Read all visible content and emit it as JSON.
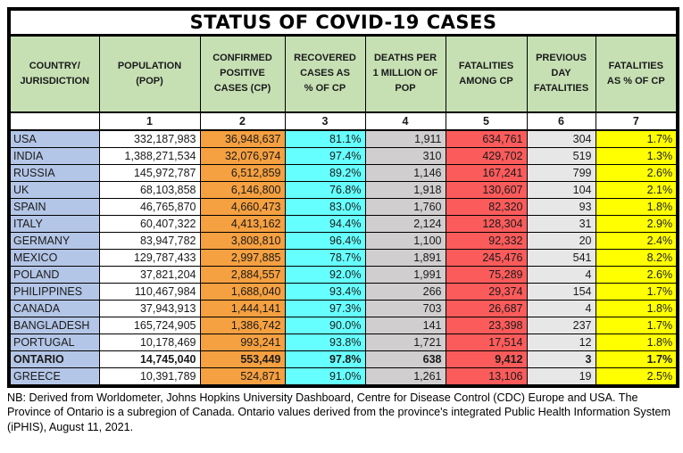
{
  "chart_data": {
    "type": "table",
    "title": "STATUS OF COVID-19 CASES",
    "columns": [
      "COUNTRY/\nJURISDICTION",
      "POPULATION\n(POP)",
      "CONFIRMED\nPOSITIVE\nCASES (CP)",
      "RECOVERED\nCASES AS\n% OF CP",
      "DEATHS PER\n1 MILLION OF\nPOP",
      "FATALITIES\nAMONG CP",
      "PREVIOUS\nDAY\nFATALITIES",
      "FATALITIES\nAS % OF CP"
    ],
    "column_numbers": [
      "",
      "1",
      "2",
      "3",
      "4",
      "5",
      "6",
      "7"
    ],
    "rows": [
      [
        "USA",
        "332,187,983",
        "36,948,637",
        "81.1%",
        "1,911",
        "634,761",
        "304",
        "1.7%"
      ],
      [
        "INDIA",
        "1,388,271,534",
        "32,076,974",
        "97.4%",
        "310",
        "429,702",
        "519",
        "1.3%"
      ],
      [
        "RUSSIA",
        "145,972,787",
        "6,512,859",
        "89.2%",
        "1,146",
        "167,241",
        "799",
        "2.6%"
      ],
      [
        "UK",
        "68,103,858",
        "6,146,800",
        "76.8%",
        "1,918",
        "130,607",
        "104",
        "2.1%"
      ],
      [
        "SPAIN",
        "46,765,870",
        "4,660,473",
        "83.0%",
        "1,760",
        "82,320",
        "93",
        "1.8%"
      ],
      [
        "ITALY",
        "60,407,322",
        "4,413,162",
        "94.4%",
        "2,124",
        "128,304",
        "31",
        "2.9%"
      ],
      [
        "GERMANY",
        "83,947,782",
        "3,808,810",
        "96.4%",
        "1,100",
        "92,332",
        "20",
        "2.4%"
      ],
      [
        "MEXICO",
        "129,787,433",
        "2,997,885",
        "78.7%",
        "1,891",
        "245,476",
        "541",
        "8.2%"
      ],
      [
        "POLAND",
        "37,821,204",
        "2,884,557",
        "92.0%",
        "1,991",
        "75,289",
        "4",
        "2.6%"
      ],
      [
        "PHILIPPINES",
        "110,467,984",
        "1,688,040",
        "93.4%",
        "266",
        "29,374",
        "154",
        "1.7%"
      ],
      [
        "CANADA",
        "37,943,913",
        "1,444,141",
        "97.3%",
        "703",
        "26,687",
        "4",
        "1.8%"
      ],
      [
        "BANGLADESH",
        "165,724,905",
        "1,386,742",
        "90.0%",
        "141",
        "23,398",
        "237",
        "1.7%"
      ],
      [
        "PORTUGAL",
        "10,178,469",
        "993,241",
        "93.8%",
        "1,721",
        "17,514",
        "12",
        "1.8%"
      ],
      [
        "ONTARIO",
        "14,745,040",
        "553,449",
        "97.8%",
        "638",
        "9,412",
        "3",
        "1.7%"
      ],
      [
        "GREECE",
        "10,391,789",
        "524,871",
        "91.0%",
        "1,261",
        "13,106",
        "19",
        "2.5%"
      ]
    ],
    "bold_rows": [
      "ONTARIO"
    ],
    "footnote": "NB: Derived from Worldometer, Johns Hopkins University Dashboard, Centre for Disease Control (CDC) Europe and USA. The Province of Ontario is a subregion of Canada. Ontario values derived from the province's integrated Public Health Information System (iPHIS), August 11, 2021."
  },
  "colors": {
    "header_green": "#C6E0B4",
    "col_country": "#B4C6E7",
    "col_pop": "#FFFFFF",
    "col_cp": "#F5A041",
    "col_rec": "#66FFFF",
    "col_deaths": "#D0CECE",
    "col_fat": "#FC5B5B",
    "col_prev": "#E8E7E7",
    "col_fatpct": "#FFFF00",
    "border_black": "#000000"
  }
}
